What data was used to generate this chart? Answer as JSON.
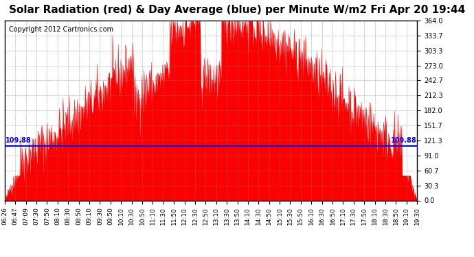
{
  "title": "Solar Radiation (red) & Day Average (blue) per Minute W/m2 Fri Apr 20 19:44",
  "copyright": "Copyright 2012 Cartronics.com",
  "ymax": 364.0,
  "ymin": 0.0,
  "yticks": [
    0.0,
    30.3,
    60.7,
    91.0,
    121.3,
    151.7,
    182.0,
    212.3,
    242.7,
    273.0,
    303.3,
    333.7,
    364.0
  ],
  "avg_line_y": 109.88,
  "avg_label": "109.88",
  "fill_color": "#FF0000",
  "line_color": "#0000FF",
  "background_color": "#FFFFFF",
  "title_fontsize": 11,
  "copyright_fontsize": 7,
  "xtick_labels": [
    "06:26",
    "06:47",
    "07:09",
    "07:30",
    "07:50",
    "08:10",
    "08:30",
    "08:50",
    "09:10",
    "09:30",
    "09:50",
    "10:10",
    "10:30",
    "10:50",
    "11:10",
    "11:30",
    "11:50",
    "12:10",
    "12:30",
    "12:50",
    "13:10",
    "13:30",
    "13:50",
    "14:10",
    "14:30",
    "14:50",
    "15:10",
    "15:30",
    "15:50",
    "16:10",
    "16:30",
    "16:50",
    "17:10",
    "17:30",
    "17:50",
    "18:10",
    "18:30",
    "18:50",
    "19:10",
    "19:30"
  ]
}
